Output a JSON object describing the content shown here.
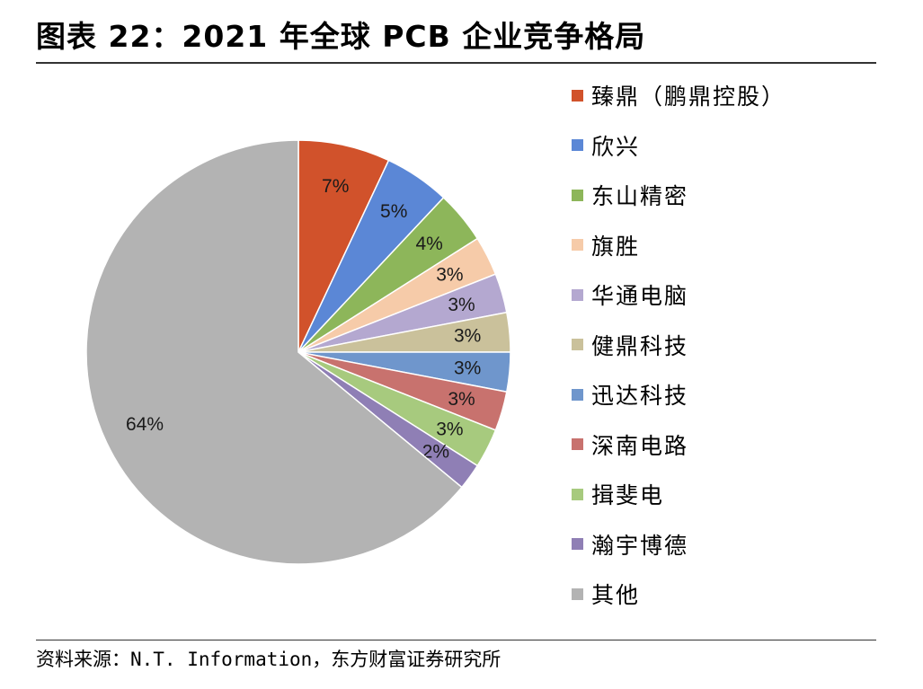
{
  "title": "图表 22：2021 年全球 PCB 企业竞争格局",
  "source": "资料来源：N.T. Information，东方财富证券研究所",
  "chart_data": {
    "type": "pie",
    "start": "12 o'clock",
    "direction": "clockwise",
    "legend_position": "right",
    "slices": [
      {
        "label": "臻鼎（鹏鼎控股）",
        "value": 7,
        "value_label": "7%",
        "color": "#D1522B"
      },
      {
        "label": "欣兴",
        "value": 5,
        "value_label": "5%",
        "color": "#5B87D6"
      },
      {
        "label": "东山精密",
        "value": 4,
        "value_label": "4%",
        "color": "#8DB65A"
      },
      {
        "label": "旗胜",
        "value": 3,
        "value_label": "3%",
        "color": "#F6CBA9"
      },
      {
        "label": "华通电脑",
        "value": 3,
        "value_label": "3%",
        "color": "#B4A8D0"
      },
      {
        "label": "健鼎科技",
        "value": 3,
        "value_label": "3%",
        "color": "#CAC19B"
      },
      {
        "label": "迅达科技",
        "value": 3,
        "value_label": "3%",
        "color": "#6F96CC"
      },
      {
        "label": "深南电路",
        "value": 3,
        "value_label": "3%",
        "color": "#C8726E"
      },
      {
        "label": "揖斐电",
        "value": 3,
        "value_label": "3%",
        "color": "#A7CA7E"
      },
      {
        "label": "瀚宇博德",
        "value": 2,
        "value_label": "2%",
        "color": "#8F7FB5"
      },
      {
        "label": "其他",
        "value": 64,
        "value_label": "64%",
        "color": "#B3B3B3"
      }
    ]
  }
}
